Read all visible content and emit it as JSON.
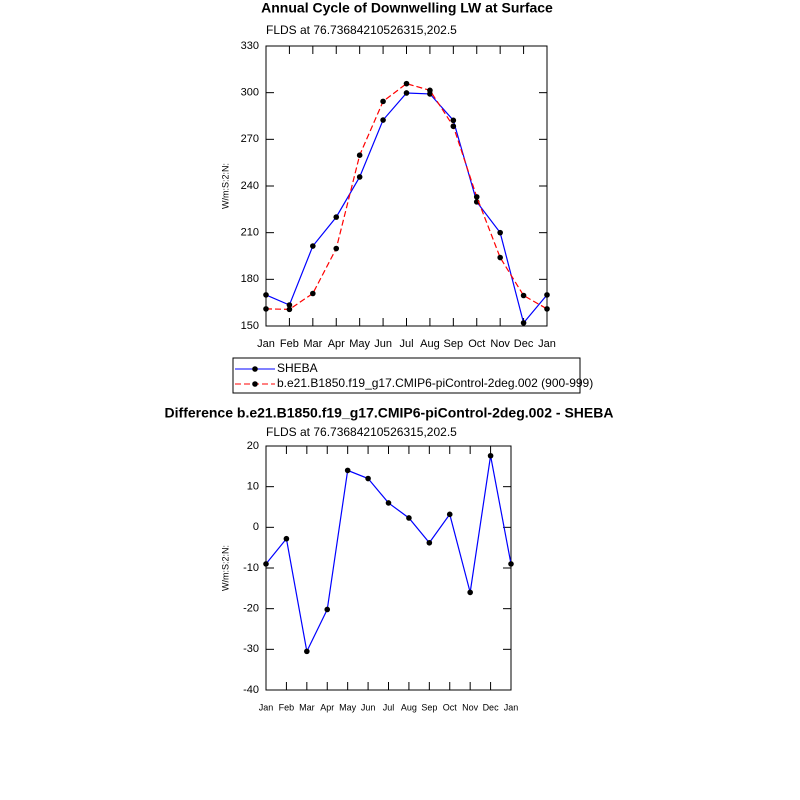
{
  "chart_data": [
    {
      "type": "line",
      "title": "Annual Cycle of Downwelling LW at Surface",
      "subtitle": "FLDS at 76.73684210526315,202.5",
      "ylabel": "W/m:S:2:N:",
      "categories": [
        "Jan",
        "Feb",
        "Mar",
        "Apr",
        "May",
        "Jun",
        "Jul",
        "Aug",
        "Sep",
        "Oct",
        "Nov",
        "Dec",
        "Jan"
      ],
      "series": [
        {
          "name": "SHEBA",
          "color": "#0000ff",
          "dashed": false,
          "values": [
            170,
            163.5,
            201.4,
            220,
            245.8,
            282.4,
            299.8,
            299.2,
            282.2,
            229.8,
            210,
            152,
            170
          ]
        },
        {
          "name": "b.e21.B1850.f19_g17.CMIP6-piControl-2deg.002 (900-999)",
          "color": "#ff0000",
          "dashed": true,
          "values": [
            161,
            160.7,
            170.9,
            199.8,
            259.8,
            294.4,
            305.8,
            301.5,
            278.4,
            233,
            194,
            169.6,
            161
          ]
        }
      ],
      "ylim": [
        150,
        330
      ],
      "yticks": [
        150,
        180,
        210,
        240,
        270,
        300,
        330
      ],
      "legend": "bottom"
    },
    {
      "type": "line",
      "title": "Difference b.e21.B1850.f19_g17.CMIP6-piControl-2deg.002 - SHEBA",
      "subtitle": "FLDS at 76.73684210526315,202.5",
      "ylabel": "W/m:S:2:N:",
      "categories": [
        "Jan",
        "Feb",
        "Mar",
        "Apr",
        "May",
        "Jun",
        "Jul",
        "Aug",
        "Sep",
        "Oct",
        "Nov",
        "Dec",
        "Jan"
      ],
      "series": [
        {
          "color": "#0000ff",
          "dashed": false,
          "values": [
            -9,
            -2.8,
            -30.5,
            -20.2,
            14,
            12,
            6,
            2.3,
            -3.8,
            3.2,
            -16,
            17.6,
            -9
          ]
        }
      ],
      "ylim": [
        -40,
        20
      ],
      "yticks": [
        -40,
        -30,
        -20,
        -10,
        0,
        10,
        20
      ]
    }
  ]
}
